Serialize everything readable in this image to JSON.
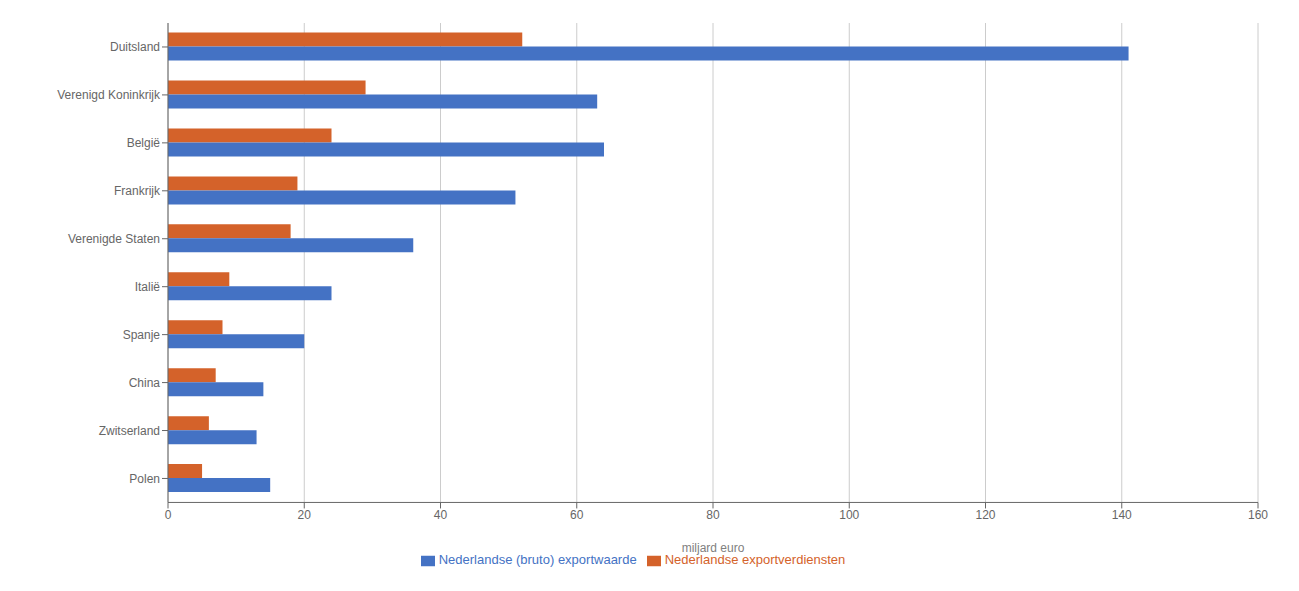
{
  "chart_data": {
    "type": "bar",
    "orientation": "horizontal",
    "categories": [
      "Duitsland",
      "Verenigd Koninkrijk",
      "België",
      "Frankrijk",
      "Verenigde Staten",
      "Italië",
      "Spanje",
      "China",
      "Zwitserland",
      "Polen"
    ],
    "series": [
      {
        "name": "Nederlandse exportverdiensten",
        "color": "#D4622A",
        "values": [
          52,
          29,
          24,
          19,
          18,
          9,
          8,
          7,
          6,
          5
        ]
      },
      {
        "name": "Nederlandse (bruto) exportwaarde",
        "color": "#4472C4",
        "values": [
          141,
          63,
          64,
          51,
          36,
          24,
          20,
          14,
          13,
          15
        ]
      }
    ],
    "xlabel": "miljard euro",
    "xlim": [
      0,
      160
    ],
    "xticks": [
      0,
      20,
      40,
      60,
      80,
      100,
      120,
      140,
      160
    ],
    "grid": true,
    "legend": "bottom"
  }
}
